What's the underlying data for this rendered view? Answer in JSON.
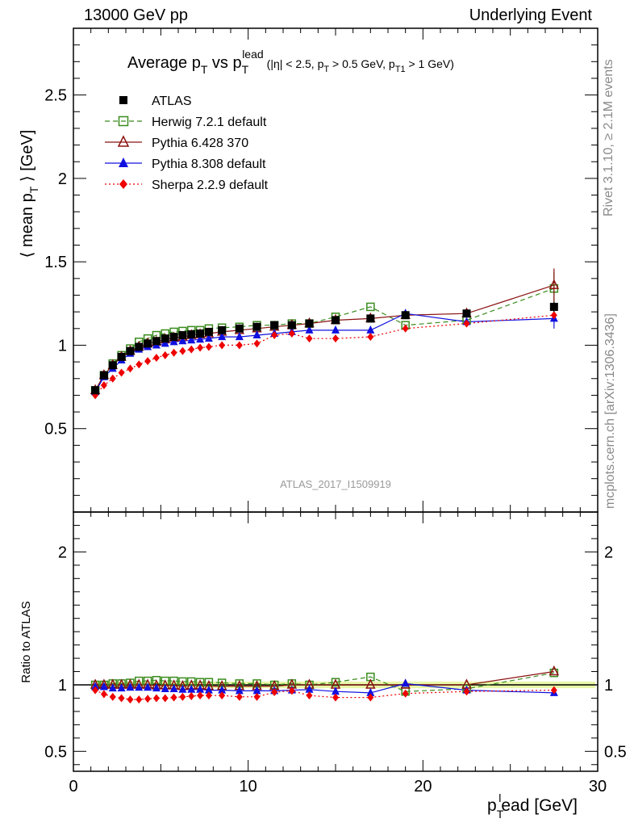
{
  "header": {
    "left": "13000 GeV pp",
    "right": "Underlying Event"
  },
  "side_labels": {
    "rivet": "Rivet 3.1.10, ≥ 2.1M events",
    "mcplots": "mcplots.cern.ch [arXiv:1306.3436]"
  },
  "watermark": "ATLAS_2017_I1509919",
  "colors": {
    "atlas": "#000000",
    "herwig": "#3a8c1e",
    "pythia6": "#8b1010",
    "pythia8": "#1010e0",
    "sherpa": "#ee0000",
    "band": "#e8f7a8"
  },
  "chart_data": [
    {
      "type": "scatter",
      "title": "Average p_T vs p_T^lead (|η| < 2.5, p_T > 0.5 GeV, p_T1 > 1 GeV)",
      "title_parts": {
        "a": "Average p",
        "a_sub": "T",
        "b": " vs p",
        "b_sub": "T",
        "b_sup": "lead",
        "c": "(|η| < 2.5, p",
        "c_sub": "T",
        "d": " > 0.5 GeV, p",
        "d_sub": "T1",
        "e": " > 1 GeV)"
      },
      "ylabel": "⟨ mean p_T ⟩ [GeV]",
      "ylabel_parts": {
        "main": "⟨ mean p",
        "sub": "T",
        "end": " ⟩ [GeV]"
      },
      "xlim": [
        0,
        30
      ],
      "ylim": [
        0,
        2.9
      ],
      "yticks": [
        0.5,
        1,
        1.5,
        2,
        2.5
      ],
      "ytick_labels": [
        "0.5",
        "1",
        "1.5",
        "2",
        "2.5"
      ],
      "x": [
        1.25,
        1.75,
        2.25,
        2.75,
        3.25,
        3.75,
        4.25,
        4.75,
        5.25,
        5.75,
        6.25,
        6.75,
        7.25,
        7.75,
        8.5,
        9.5,
        10.5,
        11.5,
        12.5,
        13.5,
        15.0,
        17.0,
        19.0,
        22.5,
        27.5
      ],
      "series": [
        {
          "name": "ATLAS",
          "key": "atlas",
          "marker": "square-filled",
          "line": "none",
          "values": [
            0.73,
            0.82,
            0.88,
            0.93,
            0.965,
            0.99,
            1.01,
            1.025,
            1.04,
            1.05,
            1.06,
            1.065,
            1.07,
            1.08,
            1.09,
            1.1,
            1.11,
            1.12,
            1.12,
            1.13,
            1.15,
            1.16,
            1.18,
            1.19,
            1.23
          ]
        },
        {
          "name": "Herwig 7.2.1 default",
          "key": "herwig",
          "marker": "square-open",
          "line": "dashed",
          "values": [
            0.73,
            0.82,
            0.89,
            0.94,
            0.98,
            1.02,
            1.04,
            1.06,
            1.07,
            1.08,
            1.085,
            1.09,
            1.09,
            1.1,
            1.105,
            1.11,
            1.12,
            1.12,
            1.13,
            1.13,
            1.17,
            1.23,
            1.12,
            1.15,
            1.34
          ]
        },
        {
          "name": "Pythia 6.428 370",
          "key": "pythia6",
          "marker": "triangle-open",
          "line": "solid",
          "values": [
            0.73,
            0.82,
            0.88,
            0.93,
            0.965,
            0.99,
            1.01,
            1.02,
            1.035,
            1.045,
            1.05,
            1.06,
            1.065,
            1.07,
            1.08,
            1.09,
            1.1,
            1.11,
            1.12,
            1.13,
            1.15,
            1.16,
            1.18,
            1.19,
            1.36
          ]
        },
        {
          "name": "Pythia 8.308 default",
          "key": "pythia8",
          "marker": "triangle-filled",
          "line": "solid",
          "values": [
            0.72,
            0.81,
            0.86,
            0.91,
            0.95,
            0.975,
            0.99,
            1.0,
            1.01,
            1.02,
            1.025,
            1.03,
            1.035,
            1.04,
            1.05,
            1.05,
            1.06,
            1.07,
            1.08,
            1.09,
            1.09,
            1.09,
            1.19,
            1.14,
            1.16
          ]
        },
        {
          "name": "Sherpa 2.2.9 default",
          "key": "sherpa",
          "marker": "diamond-filled",
          "line": "dotted",
          "values": [
            0.7,
            0.76,
            0.8,
            0.835,
            0.86,
            0.885,
            0.905,
            0.925,
            0.94,
            0.955,
            0.965,
            0.975,
            0.985,
            0.99,
            1.0,
            1.0,
            1.01,
            1.06,
            1.07,
            1.04,
            1.04,
            1.05,
            1.1,
            1.13,
            1.18
          ]
        }
      ],
      "errors": {
        "pythia6_last": 0.1,
        "herwig_last": 0.1,
        "pythia8_last": 0.06,
        "sherpa_last": 0.02,
        "atlas_last": 0.03
      },
      "legend": {
        "placement": "top-left"
      }
    },
    {
      "type": "scatter",
      "title": "",
      "ylabel": "Ratio to ATLAS",
      "xlabel": "p_T^lead [GeV]",
      "xlabel_parts": {
        "a": "p",
        "sub": "T",
        "sup": "l",
        "end": "ead [GeV]"
      },
      "xlim": [
        0,
        30
      ],
      "ylim": [
        0.35,
        2.3
      ],
      "xticks": [
        0,
        10,
        20,
        30
      ],
      "xtick_labels": [
        "0",
        "10",
        "20",
        "30"
      ],
      "yticks": [
        0.5,
        1,
        2
      ],
      "ytick_labels": [
        "0.5",
        "1",
        "2"
      ],
      "reference_line": 1.0,
      "band_halfwidth": 0.025,
      "x": [
        1.25,
        1.75,
        2.25,
        2.75,
        3.25,
        3.75,
        4.25,
        4.75,
        5.25,
        5.75,
        6.25,
        6.75,
        7.25,
        7.75,
        8.5,
        9.5,
        10.5,
        11.5,
        12.5,
        13.5,
        15.0,
        17.0,
        19.0,
        22.5,
        27.5
      ],
      "series": [
        {
          "key": "herwig",
          "marker": "square-open",
          "line": "dashed",
          "values": [
            1.0,
            1.0,
            1.01,
            1.01,
            1.015,
            1.03,
            1.03,
            1.035,
            1.03,
            1.03,
            1.025,
            1.025,
            1.02,
            1.02,
            1.015,
            1.01,
            1.01,
            1.0,
            1.01,
            1.0,
            1.02,
            1.06,
            0.95,
            0.97,
            1.09
          ]
        },
        {
          "key": "pythia6",
          "marker": "triangle-open",
          "line": "solid",
          "values": [
            1.0,
            1.0,
            1.0,
            1.0,
            1.0,
            1.0,
            1.0,
            0.995,
            0.995,
            0.995,
            0.99,
            0.995,
            0.995,
            0.99,
            0.99,
            0.99,
            0.99,
            0.99,
            1.0,
            1.0,
            1.0,
            1.0,
            1.0,
            1.0,
            1.1
          ]
        },
        {
          "key": "pythia8",
          "marker": "triangle-filled",
          "line": "solid",
          "values": [
            0.985,
            0.985,
            0.975,
            0.975,
            0.98,
            0.98,
            0.98,
            0.975,
            0.97,
            0.97,
            0.965,
            0.965,
            0.965,
            0.96,
            0.96,
            0.955,
            0.955,
            0.955,
            0.96,
            0.965,
            0.95,
            0.94,
            1.01,
            0.96,
            0.94
          ]
        },
        {
          "key": "sherpa",
          "marker": "diamond-filled",
          "line": "dotted",
          "values": [
            0.96,
            0.93,
            0.91,
            0.9,
            0.89,
            0.89,
            0.895,
            0.9,
            0.9,
            0.905,
            0.91,
            0.915,
            0.92,
            0.92,
            0.92,
            0.91,
            0.91,
            0.945,
            0.955,
            0.92,
            0.905,
            0.905,
            0.935,
            0.95,
            0.96
          ]
        }
      ]
    }
  ]
}
